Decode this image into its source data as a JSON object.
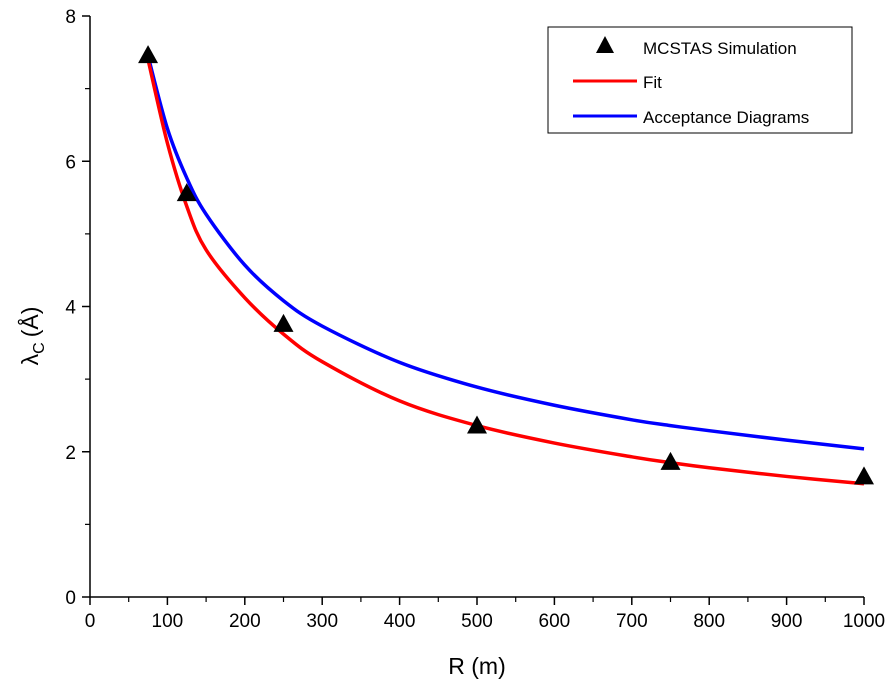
{
  "chart_data": {
    "type": "line",
    "xlabel": "R (m)",
    "ylabel": {
      "symbol": "λ",
      "subscript": "C",
      "unit": "(Å)"
    },
    "xlim": [
      0,
      1000
    ],
    "ylim": [
      0,
      8
    ],
    "x_ticks": [
      "0",
      "100",
      "200",
      "300",
      "400",
      "500",
      "600",
      "700",
      "800",
      "900",
      "1000"
    ],
    "y_ticks": [
      "0",
      "2",
      "4",
      "6",
      "8"
    ],
    "x_tick_values": [
      0,
      100,
      200,
      300,
      400,
      500,
      600,
      700,
      800,
      900,
      1000
    ],
    "y_tick_values": [
      0,
      2,
      4,
      6,
      8
    ],
    "grid": false,
    "legend_position": "top-right",
    "series": [
      {
        "name": "MCSTAS Simulation",
        "kind": "scatter",
        "marker": "triangle",
        "color": "#000000",
        "x": [
          75,
          125,
          250,
          500,
          750,
          1000
        ],
        "y": [
          7.45,
          5.55,
          3.75,
          2.35,
          1.85,
          1.65
        ]
      },
      {
        "name": "Fit",
        "kind": "line",
        "color": "#ff0000",
        "x": [
          75,
          100,
          125,
          150,
          200,
          250,
          300,
          400,
          500,
          600,
          700,
          750,
          800,
          900,
          1000
        ],
        "y": [
          7.4,
          6.25,
          5.38,
          4.78,
          4.12,
          3.62,
          3.24,
          2.7,
          2.36,
          2.12,
          1.93,
          1.85,
          1.78,
          1.66,
          1.56
        ]
      },
      {
        "name": "Acceptance Diagrams",
        "kind": "line",
        "color": "#0000ff",
        "x": [
          75,
          100,
          125,
          150,
          200,
          250,
          300,
          400,
          500,
          600,
          700,
          750,
          800,
          900,
          1000
        ],
        "y": [
          7.45,
          6.45,
          5.77,
          5.27,
          4.57,
          4.08,
          3.73,
          3.23,
          2.89,
          2.64,
          2.44,
          2.36,
          2.29,
          2.16,
          2.04
        ]
      }
    ]
  }
}
